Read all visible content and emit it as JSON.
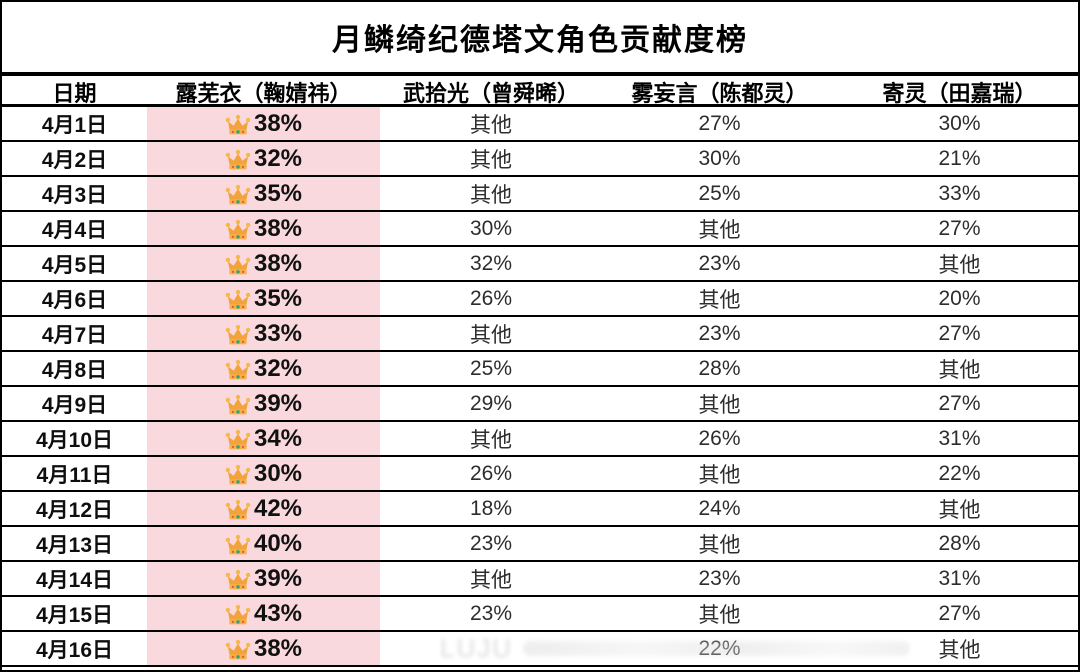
{
  "chart_data": {
    "type": "table",
    "title": "月鳞绮纪德塔文角色贡献度榜",
    "columns": [
      "日期",
      "露芜衣（鞠婧祎）",
      "武拾光（曾舜晞）",
      "雾妄言（陈都灵）",
      "寄灵（田嘉瑞）"
    ],
    "highlight_column_index": 1,
    "highlight_icon": "crown-icon",
    "rows": [
      [
        "4月1日",
        "38%",
        "其他",
        "27%",
        "30%"
      ],
      [
        "4月2日",
        "32%",
        "其他",
        "30%",
        "21%"
      ],
      [
        "4月3日",
        "35%",
        "其他",
        "25%",
        "33%"
      ],
      [
        "4月4日",
        "38%",
        "30%",
        "其他",
        "27%"
      ],
      [
        "4月5日",
        "38%",
        "32%",
        "23%",
        "其他"
      ],
      [
        "4月6日",
        "35%",
        "26%",
        "其他",
        "20%"
      ],
      [
        "4月7日",
        "33%",
        "其他",
        "23%",
        "27%"
      ],
      [
        "4月8日",
        "32%",
        "25%",
        "28%",
        "其他"
      ],
      [
        "4月9日",
        "39%",
        "29%",
        "其他",
        "27%"
      ],
      [
        "4月10日",
        "34%",
        "其他",
        "26%",
        "31%"
      ],
      [
        "4月11日",
        "30%",
        "26%",
        "其他",
        "22%"
      ],
      [
        "4月12日",
        "42%",
        "18%",
        "24%",
        "其他"
      ],
      [
        "4月13日",
        "40%",
        "23%",
        "其他",
        "28%"
      ],
      [
        "4月14日",
        "39%",
        "其他",
        "23%",
        "31%"
      ],
      [
        "4月15日",
        "43%",
        "23%",
        "其他",
        "27%"
      ],
      [
        "4月16日",
        "38%",
        "",
        "22%",
        "其他"
      ]
    ]
  },
  "watermark": {
    "text": "LUJU"
  },
  "colors": {
    "highlight_pink": "#f9d9de",
    "crown_gold": "#f2a33c",
    "border": "#000000",
    "value_text": "#2d2d2d"
  }
}
